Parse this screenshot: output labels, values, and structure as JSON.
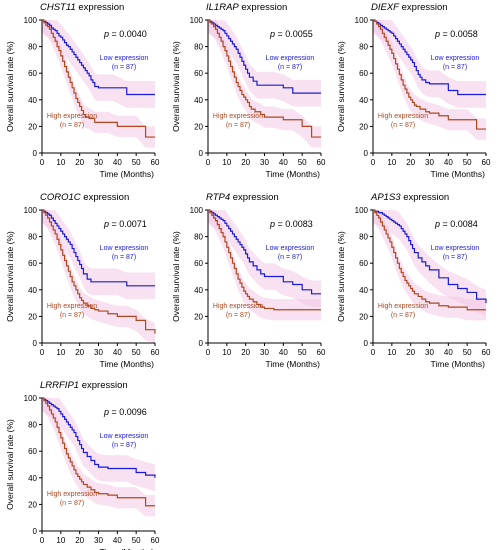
{
  "colors": {
    "low": "#1a1ad9",
    "high": "#b0481f",
    "ci_fill": "#f3c9e6",
    "axis": "#000000"
  },
  "common": {
    "xlabel": "Time (Months)",
    "ylabel": "Overall survival rate (%)",
    "title_suffix": " expression",
    "low_label": "Low expression",
    "low_n": "(n = 87)",
    "high_label": "High expression",
    "high_n": "(n = 87)",
    "xticks": [
      0,
      10,
      20,
      30,
      40,
      50,
      60
    ],
    "yticks": [
      0,
      20,
      40,
      60,
      80,
      100
    ],
    "xlim": [
      0,
      60
    ],
    "ylim": [
      0,
      100
    ]
  },
  "chart_data": [
    {
      "type": "line",
      "title_gene": "CHST11",
      "p_value": "= 0.0040",
      "series": [
        {
          "name": "Low expression",
          "x": [
            0,
            1,
            2,
            3,
            4,
            5,
            6,
            7,
            8,
            9,
            10,
            11,
            12,
            13,
            14,
            15,
            16,
            17,
            18,
            19,
            20,
            21,
            22,
            23,
            24,
            25,
            26,
            27,
            28,
            30,
            35,
            38,
            45,
            50,
            55,
            60
          ],
          "y": [
            100,
            99,
            98,
            97,
            96,
            94,
            93,
            92,
            90,
            88,
            87,
            85,
            83,
            81,
            80,
            78,
            76,
            74,
            72,
            70,
            68,
            66,
            64,
            62,
            60,
            58,
            55,
            53,
            50,
            49,
            49,
            49,
            44,
            44,
            44,
            44
          ]
        },
        {
          "name": "High expression",
          "x": [
            0,
            1,
            2,
            3,
            4,
            5,
            6,
            7,
            8,
            9,
            10,
            11,
            12,
            13,
            14,
            15,
            16,
            17,
            18,
            19,
            20,
            21,
            22,
            23,
            25,
            28,
            30,
            35,
            40,
            45,
            50,
            55,
            60
          ],
          "y": [
            100,
            98,
            96,
            95,
            93,
            90,
            87,
            84,
            80,
            77,
            73,
            69,
            65,
            61,
            57,
            53,
            49,
            45,
            41,
            38,
            35,
            32,
            29,
            27,
            26,
            23,
            23,
            23,
            20,
            20,
            20,
            12,
            12
          ]
        }
      ]
    },
    {
      "type": "line",
      "title_gene": "IL1RAP",
      "p_value": "= 0.0055",
      "series": [
        {
          "name": "Low expression",
          "x": [
            0,
            1,
            2,
            3,
            4,
            5,
            6,
            7,
            8,
            9,
            10,
            11,
            12,
            13,
            14,
            15,
            16,
            17,
            18,
            19,
            20,
            21,
            22,
            24,
            26,
            28,
            30,
            35,
            40,
            45,
            50,
            60
          ],
          "y": [
            100,
            99,
            98,
            97,
            96,
            95,
            94,
            93,
            92,
            90,
            88,
            86,
            84,
            82,
            80,
            78,
            75,
            72,
            69,
            66,
            63,
            60,
            57,
            54,
            51,
            51,
            51,
            51,
            49,
            45,
            45,
            45
          ]
        },
        {
          "name": "High expression",
          "x": [
            0,
            1,
            2,
            3,
            4,
            5,
            6,
            7,
            8,
            9,
            10,
            11,
            12,
            13,
            14,
            15,
            16,
            17,
            18,
            19,
            20,
            21,
            22,
            23,
            25,
            28,
            30,
            35,
            40,
            45,
            50,
            55,
            60
          ],
          "y": [
            100,
            98,
            97,
            95,
            93,
            90,
            87,
            84,
            80,
            77,
            73,
            69,
            65,
            61,
            57,
            53,
            50,
            47,
            44,
            42,
            40,
            38,
            35,
            33,
            31,
            29,
            27,
            27,
            25,
            25,
            20,
            12,
            12
          ]
        }
      ]
    },
    {
      "type": "line",
      "title_gene": "DIEXF",
      "p_value": "= 0.0058",
      "series": [
        {
          "name": "Low expression",
          "x": [
            0,
            1,
            2,
            3,
            4,
            5,
            6,
            7,
            8,
            9,
            10,
            11,
            12,
            13,
            14,
            15,
            16,
            17,
            18,
            19,
            20,
            21,
            22,
            23,
            24,
            25,
            26,
            28,
            30,
            35,
            40,
            45,
            50,
            55,
            60
          ],
          "y": [
            100,
            99,
            98,
            97,
            96,
            95,
            94,
            93,
            92,
            91,
            90,
            88,
            86,
            84,
            82,
            80,
            78,
            76,
            74,
            72,
            70,
            68,
            65,
            62,
            59,
            57,
            55,
            53,
            52,
            52,
            47,
            44,
            44,
            44,
            44
          ]
        },
        {
          "name": "High expression",
          "x": [
            0,
            1,
            2,
            3,
            4,
            5,
            6,
            7,
            8,
            9,
            10,
            11,
            12,
            13,
            14,
            15,
            16,
            17,
            18,
            19,
            20,
            21,
            22,
            23,
            25,
            28,
            30,
            35,
            40,
            45,
            50,
            55,
            60
          ],
          "y": [
            100,
            99,
            97,
            95,
            93,
            90,
            87,
            84,
            81,
            78,
            75,
            71,
            67,
            63,
            59,
            55,
            51,
            48,
            45,
            42,
            40,
            38,
            36,
            35,
            33,
            31,
            30,
            28,
            25,
            25,
            25,
            18,
            18
          ]
        }
      ]
    },
    {
      "type": "line",
      "title_gene": "CORO1C",
      "p_value": "= 0.0071",
      "series": [
        {
          "name": "Low expression",
          "x": [
            0,
            1,
            2,
            3,
            4,
            5,
            6,
            7,
            8,
            9,
            10,
            11,
            12,
            13,
            14,
            15,
            16,
            17,
            18,
            19,
            20,
            21,
            22,
            24,
            26,
            28,
            30,
            35,
            40,
            45,
            50,
            55,
            60
          ],
          "y": [
            100,
            99,
            98,
            97,
            96,
            94,
            92,
            90,
            88,
            86,
            84,
            82,
            80,
            78,
            76,
            74,
            71,
            68,
            65,
            62,
            59,
            56,
            52,
            48,
            46,
            46,
            46,
            46,
            46,
            43,
            43,
            43,
            43
          ]
        },
        {
          "name": "High expression",
          "x": [
            0,
            1,
            2,
            3,
            4,
            5,
            6,
            7,
            8,
            9,
            10,
            11,
            12,
            13,
            14,
            15,
            16,
            17,
            18,
            19,
            20,
            21,
            22,
            24,
            26,
            28,
            30,
            35,
            40,
            45,
            50,
            55,
            60
          ],
          "y": [
            100,
            98,
            96,
            94,
            91,
            88,
            85,
            82,
            78,
            74,
            70,
            66,
            62,
            58,
            54,
            50,
            46,
            43,
            40,
            37,
            34,
            32,
            30,
            28,
            26,
            25,
            24,
            22,
            20,
            20,
            17,
            10,
            7
          ]
        }
      ]
    },
    {
      "type": "line",
      "title_gene": "RTP4",
      "p_value": "= 0.0083",
      "series": [
        {
          "name": "Low expression",
          "x": [
            0,
            1,
            2,
            3,
            4,
            5,
            6,
            7,
            8,
            9,
            10,
            11,
            12,
            13,
            14,
            15,
            16,
            17,
            18,
            19,
            20,
            21,
            22,
            24,
            26,
            28,
            30,
            35,
            40,
            45,
            50,
            55,
            60
          ],
          "y": [
            100,
            99,
            98,
            97,
            96,
            95,
            94,
            93,
            92,
            90,
            88,
            86,
            84,
            82,
            80,
            78,
            76,
            74,
            72,
            70,
            67,
            64,
            61,
            58,
            55,
            52,
            50,
            50,
            46,
            44,
            40,
            37,
            37
          ]
        },
        {
          "name": "High expression",
          "x": [
            0,
            1,
            2,
            3,
            4,
            5,
            6,
            7,
            8,
            9,
            10,
            11,
            12,
            13,
            14,
            15,
            16,
            17,
            18,
            19,
            20,
            21,
            22,
            24,
            26,
            28,
            30,
            35,
            40,
            45,
            50,
            60
          ],
          "y": [
            100,
            98,
            96,
            94,
            92,
            89,
            86,
            83,
            80,
            76,
            72,
            68,
            64,
            60,
            56,
            52,
            48,
            45,
            42,
            39,
            37,
            35,
            33,
            31,
            29,
            27,
            26,
            25,
            25,
            25,
            25,
            25
          ]
        }
      ]
    },
    {
      "type": "line",
      "title_gene": "AP1S3",
      "p_value": "= 0.0084",
      "series": [
        {
          "name": "Low expression",
          "x": [
            0,
            1,
            2,
            3,
            4,
            5,
            6,
            7,
            8,
            9,
            10,
            11,
            12,
            13,
            14,
            15,
            16,
            17,
            18,
            19,
            20,
            21,
            22,
            24,
            26,
            28,
            30,
            35,
            40,
            45,
            50,
            55,
            60
          ],
          "y": [
            100,
            99,
            99,
            98,
            98,
            97,
            96,
            95,
            94,
            93,
            92,
            91,
            90,
            89,
            88,
            86,
            84,
            82,
            80,
            77,
            74,
            71,
            68,
            64,
            61,
            58,
            55,
            49,
            44,
            41,
            38,
            33,
            30
          ]
        },
        {
          "name": "High expression",
          "x": [
            0,
            1,
            2,
            3,
            4,
            5,
            6,
            7,
            8,
            9,
            10,
            11,
            12,
            13,
            14,
            15,
            16,
            17,
            18,
            19,
            20,
            21,
            22,
            24,
            26,
            28,
            30,
            35,
            40,
            45,
            50,
            55,
            60
          ],
          "y": [
            100,
            98,
            96,
            94,
            91,
            88,
            85,
            82,
            79,
            76,
            72,
            68,
            64,
            60,
            56,
            53,
            50,
            47,
            45,
            43,
            41,
            39,
            37,
            35,
            33,
            31,
            30,
            28,
            27,
            27,
            25,
            25,
            25
          ]
        }
      ]
    },
    {
      "type": "line",
      "title_gene": "LRRFIP1",
      "p_value": "= 0.0096",
      "series": [
        {
          "name": "Low expression",
          "x": [
            0,
            1,
            2,
            3,
            4,
            5,
            6,
            7,
            8,
            9,
            10,
            11,
            12,
            13,
            14,
            15,
            16,
            17,
            18,
            19,
            20,
            21,
            22,
            24,
            26,
            28,
            30,
            35,
            40,
            45,
            50,
            55,
            60
          ],
          "y": [
            100,
            99,
            98,
            97,
            96,
            95,
            94,
            93,
            92,
            90,
            88,
            86,
            84,
            82,
            80,
            78,
            76,
            74,
            71,
            68,
            65,
            62,
            59,
            56,
            53,
            50,
            48,
            47,
            47,
            47,
            44,
            42,
            40
          ]
        },
        {
          "name": "High expression",
          "x": [
            0,
            1,
            2,
            3,
            4,
            5,
            6,
            7,
            8,
            9,
            10,
            11,
            12,
            13,
            14,
            15,
            16,
            17,
            18,
            19,
            20,
            21,
            22,
            24,
            26,
            28,
            30,
            35,
            40,
            45,
            50,
            55,
            60
          ],
          "y": [
            100,
            98,
            96,
            94,
            91,
            88,
            85,
            82,
            78,
            74,
            70,
            66,
            62,
            58,
            55,
            52,
            49,
            46,
            43,
            41,
            39,
            37,
            35,
            33,
            31,
            29,
            28,
            27,
            25,
            25,
            25,
            19,
            19
          ]
        }
      ]
    }
  ]
}
